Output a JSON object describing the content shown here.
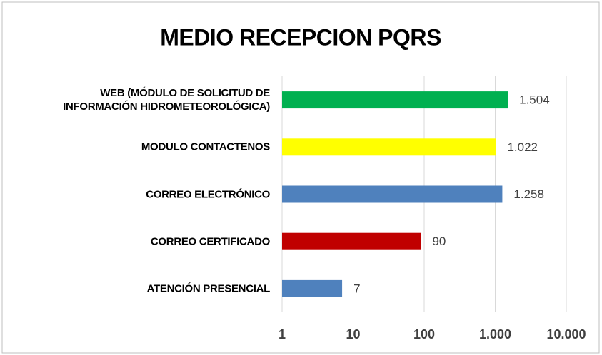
{
  "chart_data": {
    "type": "bar",
    "orientation": "horizontal",
    "title": "MEDIO RECEPCION PQRS",
    "categories": [
      "WEB (MÓDULO DE SOLICITUD DE INFORMACIÓN HIDROMETEOROLÓGICA)",
      "MODULO CONTACTENOS",
      "CORREO ELECTRÓNICO",
      "CORREO CERTIFICADO",
      "ATENCIÓN PRESENCIAL"
    ],
    "values": [
      1504,
      1022,
      1258,
      90,
      7
    ],
    "value_labels": [
      "1.504",
      "1.022",
      "1.258",
      "90",
      "7"
    ],
    "colors": [
      "#00b050",
      "#ffff00",
      "#4f81bd",
      "#c00000",
      "#4f81bd"
    ],
    "xscale": "log",
    "xlim": [
      1,
      10000
    ],
    "xticks": [
      1,
      10,
      100,
      {
        "value": 1000,
        "label": "1.000"
      },
      {
        "value": 10000,
        "label": "10.000"
      }
    ],
    "grid": true
  }
}
